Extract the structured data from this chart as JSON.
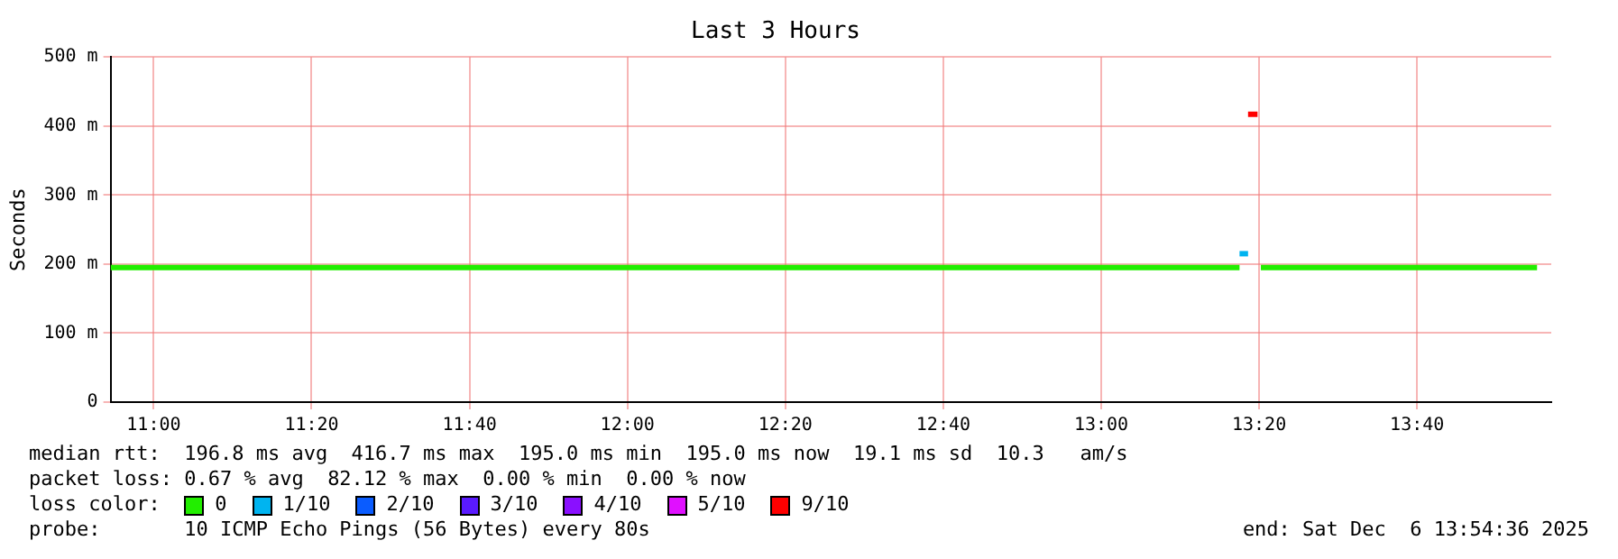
{
  "chart_data": {
    "type": "line",
    "title": "Last 3 Hours",
    "ylabel": "Seconds",
    "legend_title": "loss color:",
    "legend": "bottom",
    "grid": true,
    "xlim": [
      10.909,
      13.95
    ],
    "xticks": [
      {
        "value": 11,
        "label": "11:00"
      },
      {
        "value": 11.3333,
        "label": "11:20"
      },
      {
        "value": 11.6667,
        "label": "11:40"
      },
      {
        "value": 12,
        "label": "12:00"
      },
      {
        "value": 12.3333,
        "label": "12:20"
      },
      {
        "value": 12.6667,
        "label": "12:40"
      },
      {
        "value": 13,
        "label": "13:00"
      },
      {
        "value": 13.3333,
        "label": "13:20"
      },
      {
        "value": 13.6667,
        "label": "13:40"
      }
    ],
    "ylim": [
      0,
      500
    ],
    "yticks": [
      0,
      {
        "value": 100,
        "label": "100 m"
      },
      {
        "value": 200,
        "label": "200 m"
      },
      {
        "value": 300,
        "label": "300 m"
      },
      {
        "value": 400,
        "label": "400 m"
      },
      {
        "value": 500,
        "label": "500 m"
      }
    ],
    "series": [
      {
        "name": "0",
        "color": "#22ee00",
        "x": [
          10.909,
          13.292,
          13.3,
          13.337,
          13.92
        ],
        "values": [
          195,
          195,
          null,
          195,
          195
        ]
      },
      {
        "name": "1/10",
        "color": "#00b4f0",
        "x": [
          13.292,
          13.31
        ],
        "values": [
          215,
          215
        ]
      },
      {
        "name": "2/10",
        "color": "#0a5cff"
      },
      {
        "name": "3/10",
        "color": "#5a1aff"
      },
      {
        "name": "4/10",
        "color": "#8a10ff"
      },
      {
        "name": "5/10",
        "color": "#e010ff"
      },
      {
        "name": "9/10",
        "color": "#ff0000",
        "x": [
          13.31,
          13.33
        ],
        "values": [
          417,
          417
        ]
      }
    ],
    "annotations": [
      "median rtt:  196.8 ms avg  416.7 ms max  195.0 ms min  195.0 ms now  19.1 ms sd  10.3   am/s",
      "packet loss: 0.67 % avg  82.12 % max  0.00 % min  0.00 % now",
      "probe:       10 ICMP Echo Pings (56 Bytes) every 80s",
      "end: Sat Dec  6 13:54:36 2025"
    ]
  }
}
